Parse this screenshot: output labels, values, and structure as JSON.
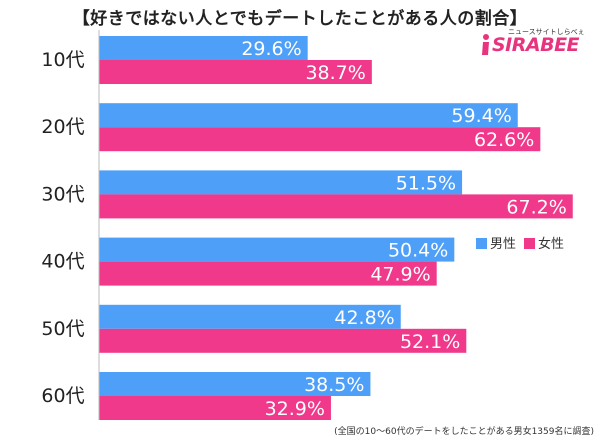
{
  "chart_data": {
    "type": "bar",
    "orientation": "horizontal",
    "title": "【好きではない人とでもデートしたことがある人の割合】",
    "categories": [
      "10代",
      "20代",
      "30代",
      "40代",
      "50代",
      "60代"
    ],
    "series": [
      {
        "name": "男性",
        "color": "#4d9ff8",
        "values": [
          29.6,
          59.4,
          51.5,
          50.4,
          42.8,
          38.5
        ],
        "labels": [
          "29.6%",
          "59.4%",
          "51.5%",
          "50.4%",
          "42.8%",
          "38.5%"
        ]
      },
      {
        "name": "女性",
        "color": "#f0398a",
        "values": [
          38.7,
          62.6,
          67.2,
          47.9,
          52.1,
          32.9
        ],
        "labels": [
          "38.7%",
          "62.6%",
          "67.2%",
          "47.9%",
          "52.1%",
          "32.9%"
        ]
      }
    ],
    "xlim": [
      0,
      70
    ],
    "legend_position": "right-middle",
    "grid": false
  },
  "logo": {
    "text": "SIRABEE",
    "subtext": "ニュースサイトしらべぇ"
  },
  "footnote": "(全国の10～60代のデートをしたことがある男女1359名に調査)"
}
